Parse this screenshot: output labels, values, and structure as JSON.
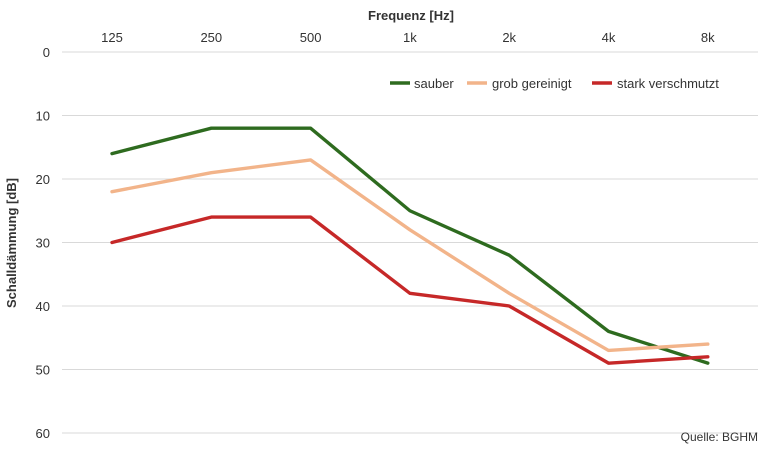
{
  "chart_data": {
    "type": "line",
    "xlabel": "Frequenz [Hz]",
    "ylabel": "Schalldämmung [dB]",
    "categories": [
      "125",
      "250",
      "500",
      "1k",
      "2k",
      "4k",
      "8k"
    ],
    "y_inverted": true,
    "ylim": [
      0,
      60
    ],
    "yticks": [
      "0",
      "10",
      "20",
      "30",
      "40",
      "50",
      "60"
    ],
    "grid": true,
    "legend_position": "top-right",
    "series": [
      {
        "name": "sauber",
        "color": "#2e6b1f",
        "values": [
          16,
          12,
          12,
          25,
          32,
          44,
          49
        ]
      },
      {
        "name": "grob gereinigt",
        "color": "#f2b48a",
        "values": [
          22,
          19,
          17,
          28,
          38,
          47,
          46
        ]
      },
      {
        "name": "stark verschmutzt",
        "color": "#c62828",
        "values": [
          30,
          26,
          26,
          38,
          40,
          49,
          48
        ]
      }
    ]
  },
  "source": "Quelle: BGHM"
}
